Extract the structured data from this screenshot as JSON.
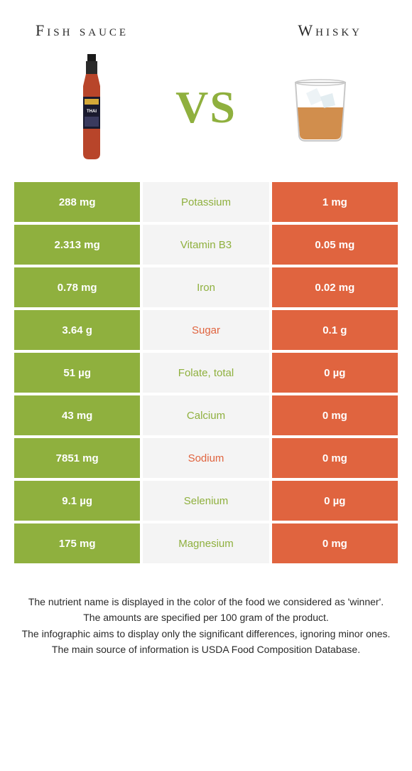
{
  "header": {
    "left_title": "Fish sauce",
    "right_title": "Whisky",
    "vs": "VS"
  },
  "colors": {
    "left_bg": "#8fb03e",
    "right_bg": "#e0643f",
    "mid_bg": "#f4f4f4",
    "vs_color": "#8fb03e",
    "text": "#2a2a2a"
  },
  "rows": [
    {
      "left": "288 mg",
      "label": "Potassium",
      "right": "1 mg",
      "winner": "left"
    },
    {
      "left": "2.313 mg",
      "label": "Vitamin B3",
      "right": "0.05 mg",
      "winner": "left"
    },
    {
      "left": "0.78 mg",
      "label": "Iron",
      "right": "0.02 mg",
      "winner": "left"
    },
    {
      "left": "3.64 g",
      "label": "Sugar",
      "right": "0.1 g",
      "winner": "right"
    },
    {
      "left": "51 µg",
      "label": "Folate, total",
      "right": "0 µg",
      "winner": "left"
    },
    {
      "left": "43 mg",
      "label": "Calcium",
      "right": "0 mg",
      "winner": "left"
    },
    {
      "left": "7851 mg",
      "label": "Sodium",
      "right": "0 mg",
      "winner": "right"
    },
    {
      "left": "9.1 µg",
      "label": "Selenium",
      "right": "0 µg",
      "winner": "left"
    },
    {
      "left": "175 mg",
      "label": "Magnesium",
      "right": "0 mg",
      "winner": "left"
    }
  ],
  "footer": {
    "line1": "The nutrient name is displayed in the color of the food we considered as 'winner'.",
    "line2": "The amounts are specified per 100 gram of the product.",
    "line3": "The infographic aims to display only the significant differences, ignoring minor ones.",
    "line4": "The main source of information is USDA Food Composition Database."
  }
}
